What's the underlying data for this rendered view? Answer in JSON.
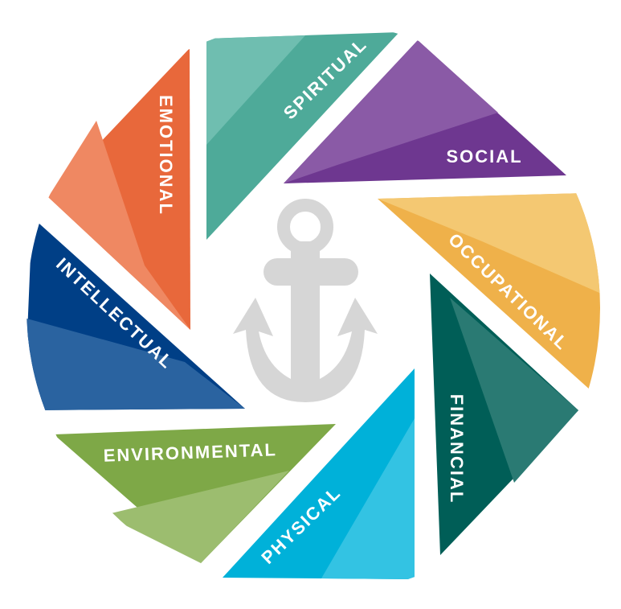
{
  "diagram": {
    "segments": [
      {
        "key": "spiritual",
        "label": "SPIRITUAL",
        "color": "#4EAA99",
        "light": "#6FBEB0"
      },
      {
        "key": "social",
        "label": "SOCIAL",
        "color": "#6E3790",
        "light": "#8A5AA6"
      },
      {
        "key": "occupational",
        "label": "OCCUPATIONAL",
        "color": "#EFB14A",
        "light": "#F4C872"
      },
      {
        "key": "financial",
        "label": "FINANCIAL",
        "color": "#005E57",
        "light": "#2A7A73"
      },
      {
        "key": "physical",
        "label": "PHYSICAL",
        "color": "#00B1D9",
        "light": "#33C3E3"
      },
      {
        "key": "environmental",
        "label": "ENVIRONMENTAL",
        "color": "#7EA847",
        "light": "#9CBD6F"
      },
      {
        "key": "intellectual",
        "label": "INTELLECTUAL",
        "color": "#003F86",
        "light": "#2A63A0"
      },
      {
        "key": "emotional",
        "label": "EMOTIONAL",
        "color": "#E8683B",
        "light": "#EF8862"
      }
    ],
    "center_icon": {
      "name": "anchor-icon",
      "color": "#D6D6D6"
    }
  }
}
